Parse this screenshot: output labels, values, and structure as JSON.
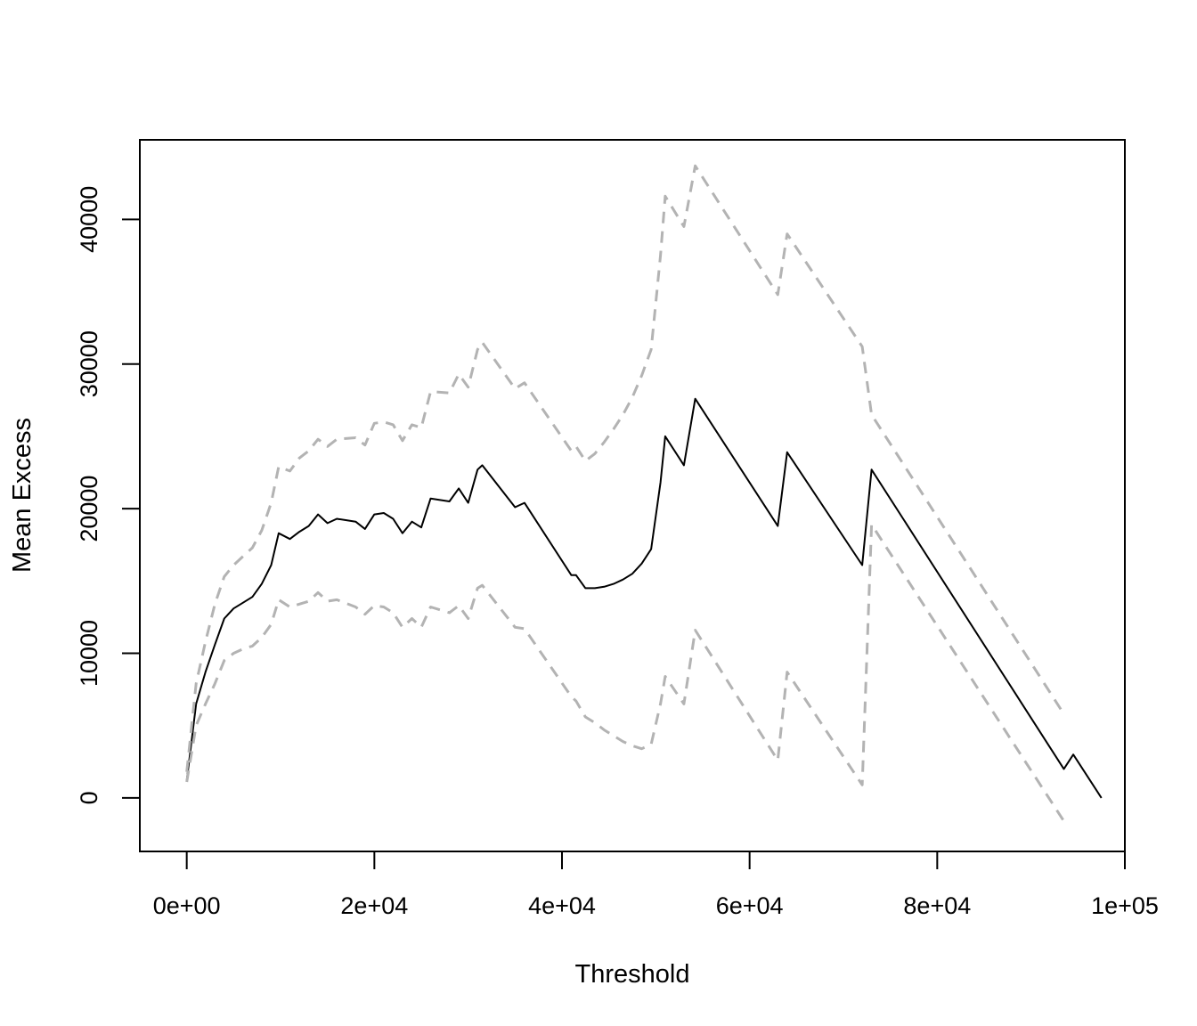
{
  "chart_data": {
    "type": "line",
    "title": "",
    "xlabel": "Threshold",
    "ylabel": "Mean Excess",
    "xlim": [
      -5000,
      100000
    ],
    "ylim": [
      -3700,
      45500
    ],
    "x_ticks": [
      {
        "value": 0,
        "label": "0e+00"
      },
      {
        "value": 20000,
        "label": "2e+04"
      },
      {
        "value": 40000,
        "label": "4e+04"
      },
      {
        "value": 60000,
        "label": "6e+04"
      },
      {
        "value": 80000,
        "label": "8e+04"
      },
      {
        "value": 100000,
        "label": "1e+05"
      }
    ],
    "y_ticks": [
      {
        "value": 0,
        "label": "0"
      },
      {
        "value": 10000,
        "label": "10000"
      },
      {
        "value": 20000,
        "label": "20000"
      },
      {
        "value": 30000,
        "label": "30000"
      },
      {
        "value": 40000,
        "label": "40000"
      }
    ],
    "grid": false,
    "colors": {
      "mean": "#000000",
      "ci": "#b3b3b3",
      "frame": "#000000"
    },
    "series": [
      {
        "role": "mean",
        "style": "solid",
        "x": [
          0,
          1000,
          2000,
          3000,
          4000,
          5000,
          6000,
          7000,
          8000,
          9000,
          9800,
          11000,
          12000,
          13000,
          14000,
          15000,
          16000,
          18000,
          19000,
          20000,
          21000,
          22000,
          23000,
          24000,
          25000,
          26000,
          28000,
          29000,
          30000,
          31000,
          31500,
          35000,
          36000,
          41000,
          41500,
          42500,
          43500,
          44500,
          45500,
          46500,
          47500,
          48500,
          49500,
          50500,
          51000,
          53000,
          54200,
          63000,
          64000,
          72000,
          73000,
          93500,
          94500,
          97500
        ],
        "y": [
          1200,
          6500,
          8700,
          10600,
          12400,
          13100,
          13500,
          13900,
          14800,
          16100,
          18300,
          17900,
          18400,
          18800,
          19600,
          19000,
          19300,
          19100,
          18600,
          19600,
          19700,
          19300,
          18300,
          19100,
          18700,
          20700,
          20500,
          21400,
          20400,
          22700,
          23000,
          20100,
          20400,
          15400,
          15400,
          14500,
          14500,
          14600,
          14800,
          15100,
          15500,
          16200,
          17200,
          21800,
          25000,
          23000,
          27600,
          18800,
          23900,
          16100,
          22700,
          2000,
          3000,
          0
        ]
      },
      {
        "role": "upper",
        "style": "dashed",
        "x": [
          0,
          1000,
          2000,
          3000,
          4000,
          5000,
          6000,
          7000,
          8000,
          9000,
          9800,
          11000,
          12000,
          13000,
          14000,
          15000,
          16000,
          18000,
          19000,
          20000,
          21000,
          22000,
          23000,
          24000,
          25000,
          26000,
          28000,
          29000,
          30000,
          31000,
          31500,
          35000,
          36000,
          41000,
          41500,
          42500,
          43500,
          44500,
          45500,
          46500,
          47500,
          48500,
          49500,
          50500,
          51000,
          53000,
          54200,
          63000,
          64000,
          72000,
          73000,
          93500
        ],
        "y": [
          1800,
          7900,
          10800,
          13400,
          15300,
          16100,
          16700,
          17300,
          18500,
          20400,
          22900,
          22600,
          23500,
          24000,
          24800,
          24300,
          24800,
          24900,
          24400,
          25900,
          26000,
          25800,
          24700,
          25800,
          25600,
          28100,
          28000,
          29300,
          28400,
          31000,
          31500,
          28300,
          28700,
          24000,
          24300,
          23300,
          23800,
          24600,
          25500,
          26500,
          27700,
          29200,
          31000,
          37500,
          41600,
          39500,
          43700,
          34800,
          39000,
          31200,
          26500,
          5800
        ]
      },
      {
        "role": "lower",
        "style": "dashed",
        "x": [
          0,
          1000,
          2000,
          3000,
          4000,
          5000,
          6000,
          7000,
          8000,
          9000,
          9800,
          11000,
          12000,
          13000,
          14000,
          15000,
          16000,
          18000,
          19000,
          20000,
          21000,
          22000,
          23000,
          24000,
          25000,
          26000,
          28000,
          29000,
          30000,
          31000,
          31500,
          35000,
          36000,
          41000,
          41500,
          42500,
          43500,
          44500,
          45500,
          46500,
          47500,
          48500,
          49500,
          50500,
          51000,
          53000,
          54200,
          63000,
          64000,
          72000,
          73000,
          93500
        ],
        "y": [
          1100,
          5000,
          6500,
          7900,
          9500,
          10000,
          10300,
          10500,
          11100,
          12000,
          13700,
          13200,
          13400,
          13600,
          14200,
          13600,
          13700,
          13200,
          12700,
          13300,
          13200,
          12800,
          11800,
          12400,
          11800,
          13200,
          12800,
          13300,
          12400,
          14500,
          14700,
          11800,
          11700,
          7000,
          6700,
          5600,
          5200,
          4700,
          4300,
          3900,
          3600,
          3400,
          3700,
          6500,
          8400,
          6500,
          11600,
          2600,
          8700,
          900,
          18900,
          -1600
        ]
      }
    ]
  }
}
